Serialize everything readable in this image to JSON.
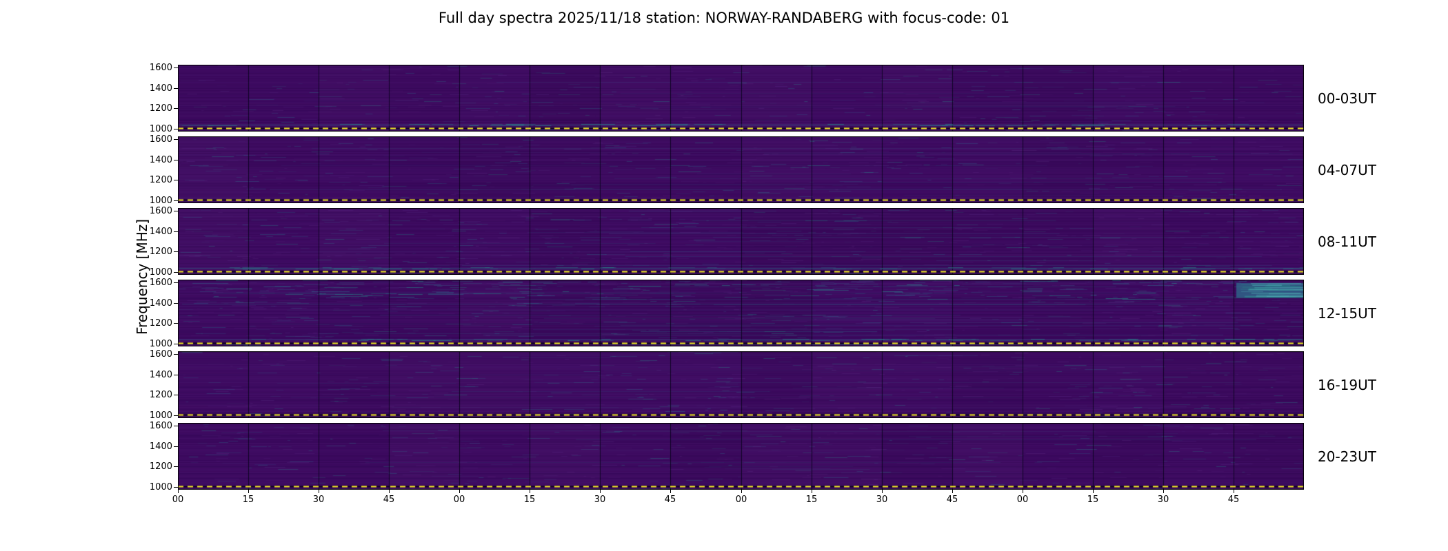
{
  "title": "Full day spectra 2025/11/18 station: NORWAY-RANDABERG with focus-code: 01",
  "chart_data": {
    "type": "heatmap",
    "title": "Full day spectra 2025/11/18 station: NORWAY-RANDABERG with focus-code: 01",
    "meta": {
      "date": "2025/11/18",
      "station": "NORWAY-RANDABERG",
      "focus_code": "01"
    },
    "ylabel": "Frequency [MHz]",
    "xlabel": "",
    "colormap": "viridis",
    "freq_axis": {
      "min": 975,
      "max": 1625,
      "ticks": [
        1600,
        1400,
        1200,
        1000
      ]
    },
    "time_axis": {
      "minutes_per_panel": 240,
      "tick_interval_min": 15,
      "tick_labels": [
        "00",
        "15",
        "30",
        "45",
        "00",
        "15",
        "30",
        "45",
        "00",
        "15",
        "30",
        "45",
        "00",
        "15",
        "30",
        "45"
      ]
    },
    "segments_per_panel": 16,
    "marker_line": {
      "style": "dashed",
      "color": "#f5ec27",
      "fraction_from_bottom": 0.05
    },
    "colors": {
      "base": "#3d0a60",
      "band_light": "#5b2a85",
      "band_dark": "#26044a",
      "blue": "#2e6f8e",
      "teal": "#27918c",
      "boundary": "#0b0320"
    },
    "panels": [
      {
        "label": "00-03UT",
        "activity": 0.25,
        "top_band": false,
        "bottom_blue": true,
        "hot_region": null,
        "seed": 101
      },
      {
        "label": "04-07UT",
        "activity": 0.35,
        "top_band": false,
        "bottom_blue": false,
        "hot_region": null,
        "seed": 202
      },
      {
        "label": "08-11UT",
        "activity": 0.55,
        "top_band": false,
        "bottom_blue": true,
        "hot_region": null,
        "seed": 303
      },
      {
        "label": "12-15UT",
        "activity": 0.9,
        "top_band": true,
        "bottom_blue": true,
        "hot_region": {
          "x0": 0.94,
          "y0": 0.05,
          "x1": 1.0,
          "y1": 0.27
        },
        "seed": 404
      },
      {
        "label": "16-19UT",
        "activity": 0.35,
        "top_band": false,
        "bottom_blue": false,
        "hot_region": null,
        "seed": 505
      },
      {
        "label": "20-23UT",
        "activity": 0.3,
        "top_band": false,
        "bottom_blue": false,
        "hot_region": null,
        "seed": 606
      }
    ]
  }
}
